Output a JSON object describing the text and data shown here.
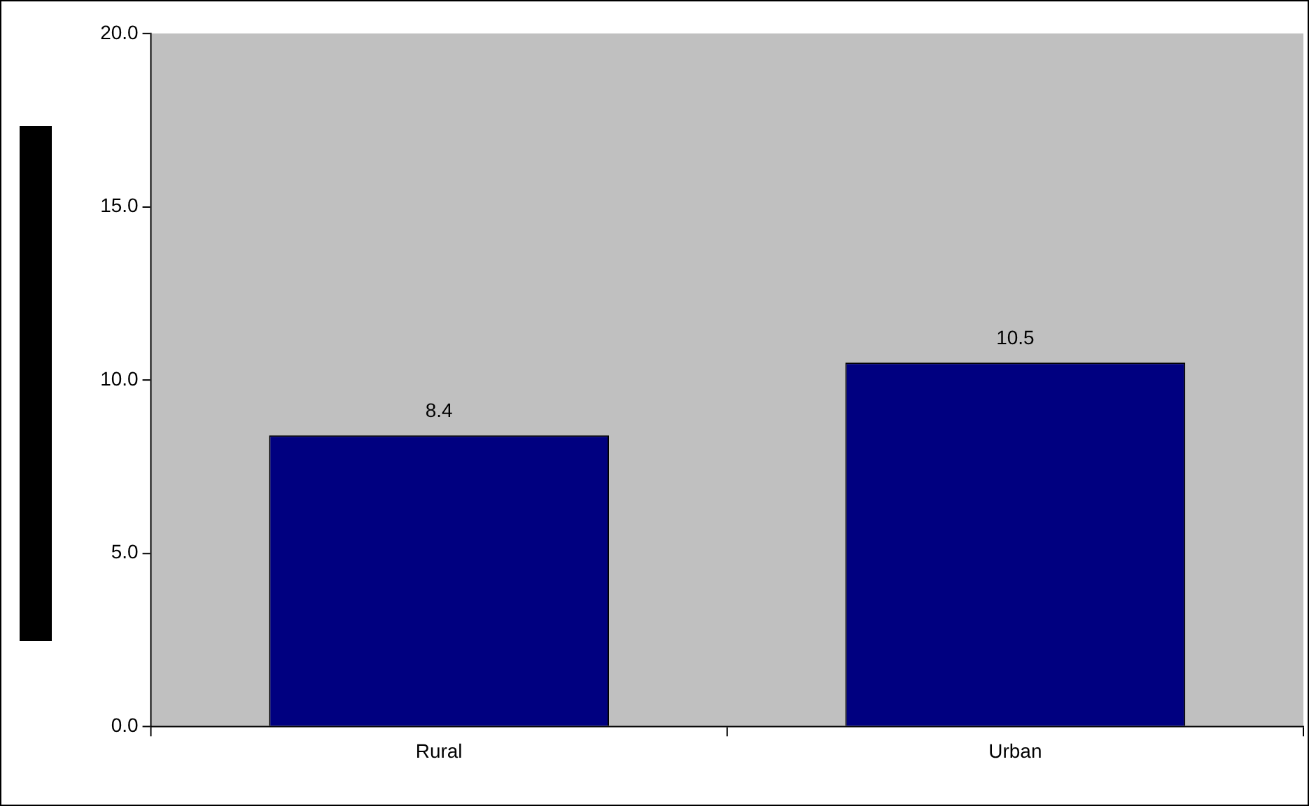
{
  "chart_data": {
    "type": "bar",
    "categories": [
      "Rural",
      "Urban"
    ],
    "values": [
      8.4,
      10.5
    ],
    "color": "#000080",
    "ylim": [
      0,
      20
    ],
    "yticks": [
      {
        "value": 0,
        "label": "0.0"
      },
      {
        "value": 5,
        "label": "5.0"
      },
      {
        "value": 10,
        "label": "10.0"
      },
      {
        "value": 15,
        "label": "15.0"
      },
      {
        "value": 20,
        "label": "20.0"
      }
    ],
    "grid": false,
    "legend": false,
    "data_labels": true
  }
}
